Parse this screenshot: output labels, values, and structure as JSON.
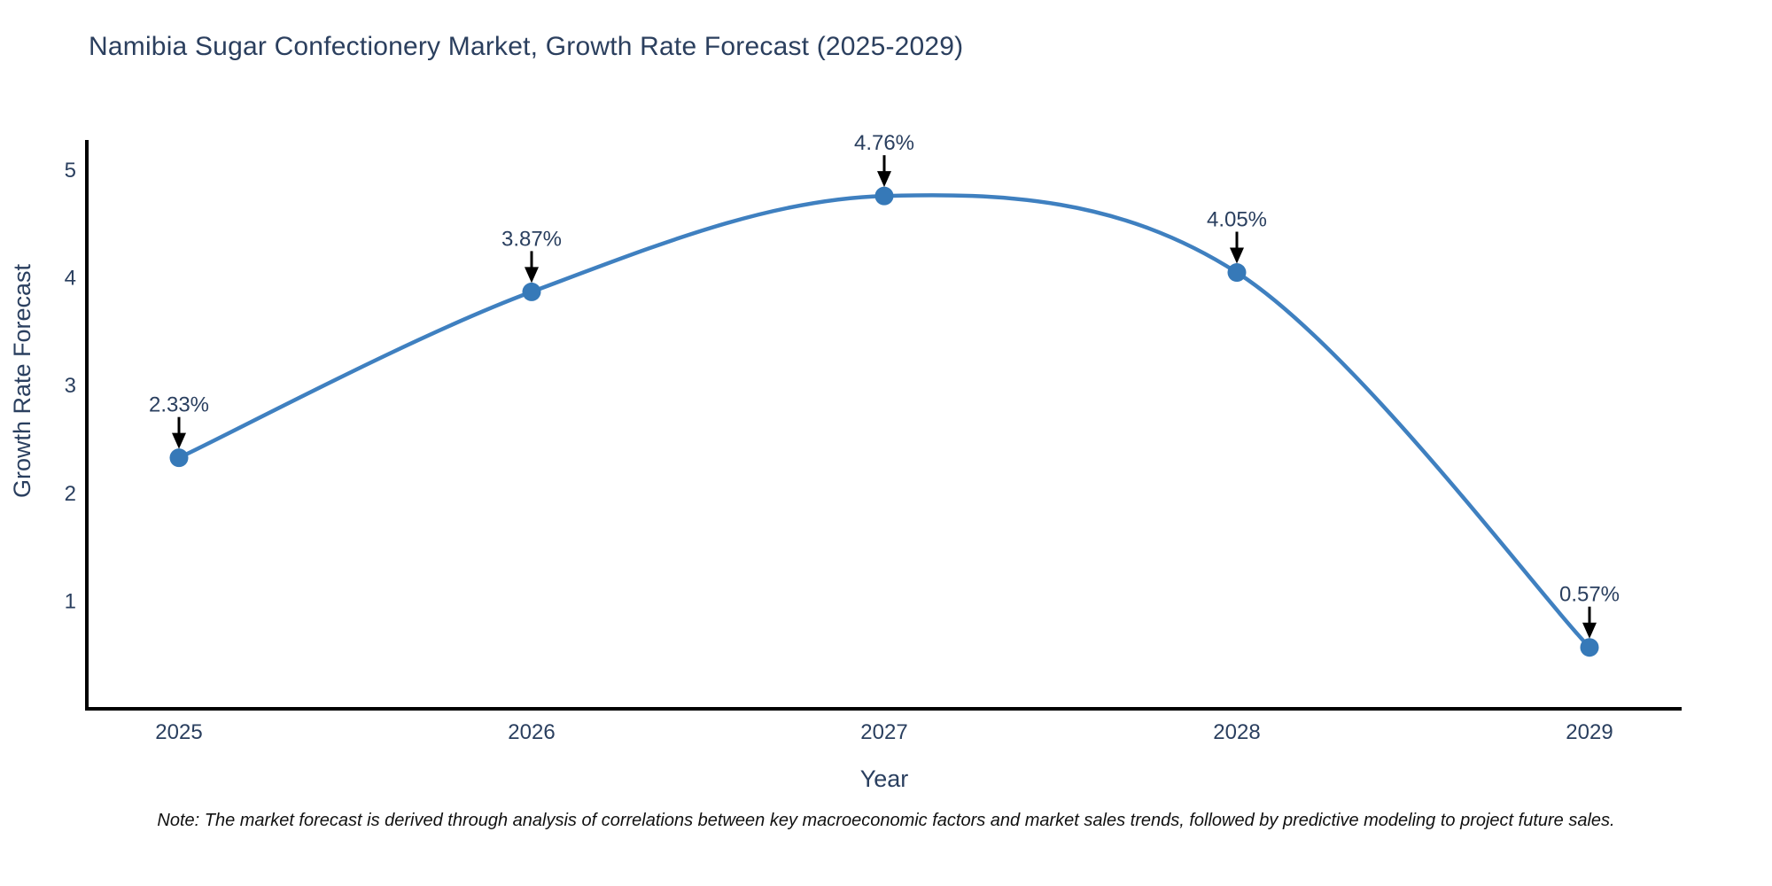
{
  "chart_data": {
    "type": "line",
    "title": "Namibia Sugar Confectionery Market, Growth Rate Forecast (2025-2029)",
    "x": [
      2025,
      2026,
      2027,
      2028,
      2029
    ],
    "series": [
      {
        "name": "Growth Rate Forecast",
        "values": [
          2.33,
          3.87,
          4.76,
          4.05,
          0.57
        ]
      }
    ],
    "point_labels": [
      "2.33%",
      "3.87%",
      "4.76%",
      "4.05%",
      "0.57%"
    ],
    "xlabel": "Year",
    "ylabel": "Growth Rate Forecast",
    "ylim": [
      0,
      5.3
    ],
    "yticks": [
      1,
      2,
      3,
      4,
      5
    ],
    "grid": false,
    "legend_position": "none",
    "line_shape": "spline",
    "marker": "circle",
    "colors": {
      "line": "#3f80c0",
      "marker": "#3679b8",
      "axis": "#000000",
      "tick_label": "#2a3f5f",
      "axis_title": "#2a3f5f",
      "annotation_text": "#2a3f5f",
      "arrow": "#000000",
      "background": "#ffffff",
      "title": "#2b3f5e"
    }
  },
  "footnote": {
    "text": "Note: The market forecast is derived through analysis of correlations between key macroeconomic factors and market sales trends, followed by predictive modeling to project future sales."
  }
}
